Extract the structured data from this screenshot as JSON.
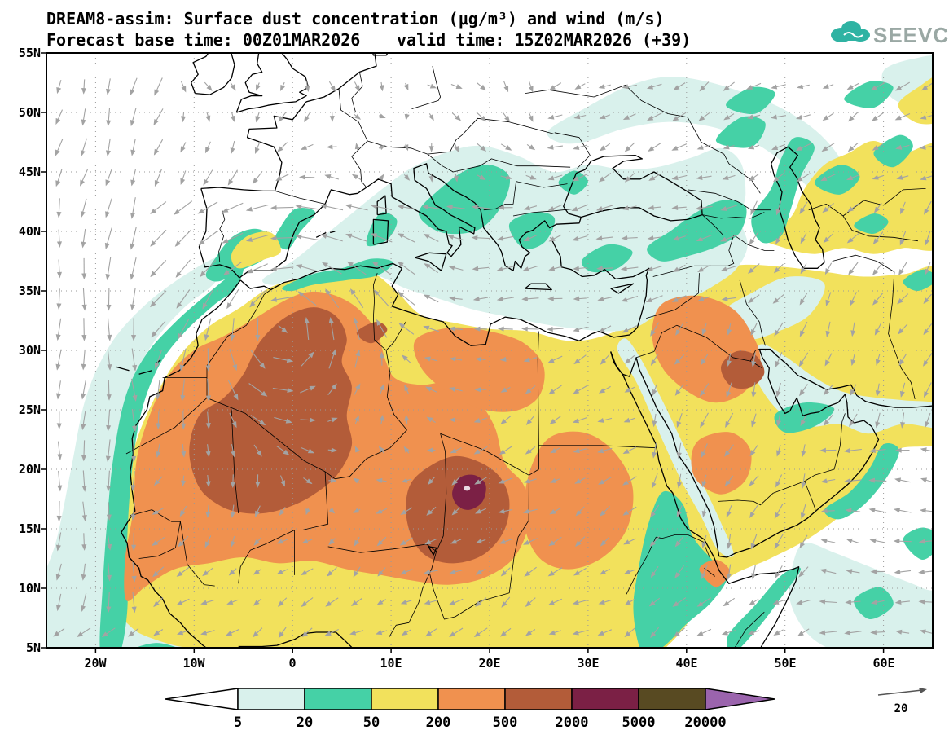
{
  "header": {
    "title_line1": "DREAM8-assim: Surface dust concentration (μg/m³) and wind (m/s)",
    "base_time_label": "Forecast base time: 00Z01MAR2026",
    "valid_time_label": "valid time: 15Z02MAR2026 (+39)"
  },
  "logo": {
    "text": "SEEVCCC"
  },
  "axes": {
    "lat": [
      "55N",
      "50N",
      "45N",
      "40N",
      "35N",
      "30N",
      "25N",
      "20N",
      "15N",
      "10N",
      "5N"
    ],
    "lon": [
      "20W",
      "10W",
      "0",
      "10E",
      "20E",
      "30E",
      "40E",
      "50E",
      "60E"
    ]
  },
  "colorbar": {
    "labels": [
      "5",
      "20",
      "50",
      "200",
      "500",
      "2000",
      "5000",
      "20000"
    ],
    "colors": [
      "#ffffff",
      "#d9f1ec",
      "#45d1a6",
      "#f2e15c",
      "#f0914f",
      "#b35c39",
      "#7b2045",
      "#584a22",
      "#9b64ad"
    ]
  },
  "wind_reference": {
    "label": "20"
  },
  "chart_data": {
    "type": "heatmap",
    "title": "DREAM8-assim: Surface dust concentration (μg/m³) and wind (m/s)",
    "model": "DREAM8-assim",
    "variable": "Surface dust concentration",
    "units": "μg/m³",
    "overlay": "wind (m/s)",
    "forecast_base_time": "00Z01MAR2026",
    "valid_time": "15Z02MAR2026",
    "forecast_hour": "+39",
    "lon_range_deg": [
      -25,
      65
    ],
    "lat_range_deg": [
      5,
      55
    ],
    "lat_ticks": [
      "55N",
      "50N",
      "45N",
      "40N",
      "35N",
      "30N",
      "25N",
      "20N",
      "15N",
      "10N",
      "5N"
    ],
    "lon_ticks": [
      "20W",
      "10W",
      "0",
      "10E",
      "20E",
      "30E",
      "40E",
      "50E",
      "60E"
    ],
    "contour_levels_ug_m3": [
      5,
      20,
      50,
      200,
      500,
      2000,
      5000,
      20000
    ],
    "level_colors": [
      "#ffffff",
      "#d9f1ec",
      "#45d1a6",
      "#f2e15c",
      "#f0914f",
      "#b35c39",
      "#7b2045",
      "#584a22",
      "#9b64ad"
    ],
    "wind_reference_m_s": 20,
    "grid": "dotted",
    "legend_position": "bottom",
    "notable_features": [
      "Dust maximum 2000-5000 μg/m³ over the Bodele/Chad region near 18E,18N",
      "Broad 500-2000 μg/m³ plume over central Algeria/Mali (8W-8E, 16-33N) and over Chad (12-22E, 12-20N)",
      "500-2000 μg/m³ spot over NE Arabia near 45E,28N",
      "200-500 μg/m³ over western Sahara, Sahel, northern Libya, Sudan and northern Saudi Arabia",
      "50-200 μg/m³ covering most of North Africa, the Arabian Peninsula, SE Spain and Central Asia east of the Caspian",
      "5-50 μg/m³ over the Mediterranean, Balkans, Turkey, Caucasus/Caspian, Red Sea, Ethiopian highlands, Oman coast and the NW African Atlantic coast",
      "Wind: northerly flow over the eastern Atlantic, easterly flow over the Mediterranean and Sahel, anticyclonic turning over the central Sahara"
    ]
  }
}
